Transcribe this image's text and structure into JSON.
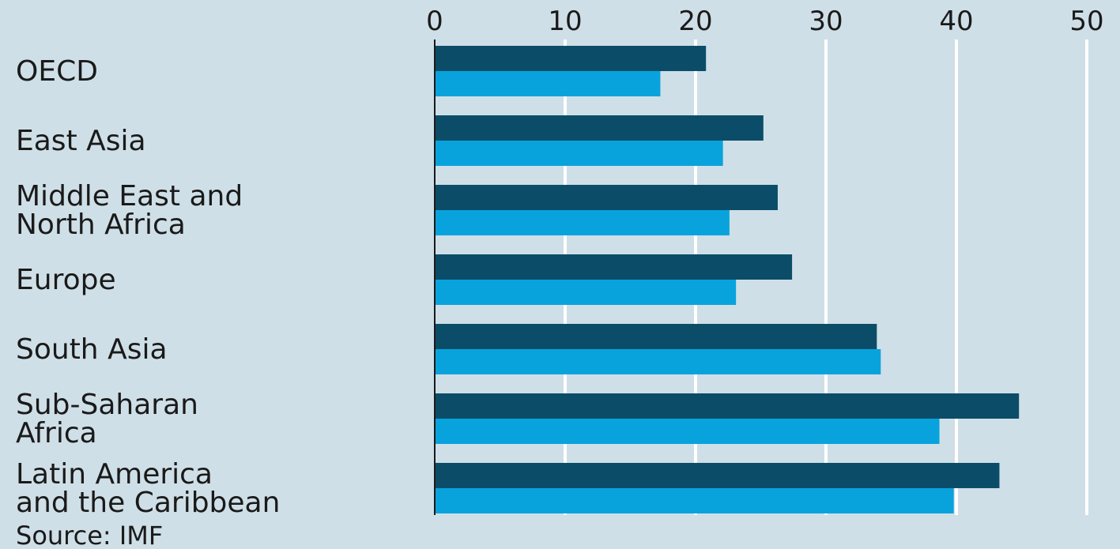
{
  "chart_data": {
    "type": "bar",
    "orientation": "horizontal",
    "categories": [
      "OECD",
      "East Asia",
      "Middle East and North Africa",
      "Europe",
      "South Asia",
      "Sub-Saharan Africa",
      "Latin America and the Caribbean"
    ],
    "category_lines": [
      [
        "OECD"
      ],
      [
        "East Asia"
      ],
      [
        "Middle East and",
        "North Africa"
      ],
      [
        "Europe"
      ],
      [
        "South Asia"
      ],
      [
        "Sub-Saharan",
        "Africa"
      ],
      [
        "Latin America",
        "and the Caribbean"
      ]
    ],
    "series": [
      {
        "values": [
          20.8,
          25.2,
          26.3,
          27.4,
          33.9,
          44.8,
          43.3
        ]
      },
      {
        "values": [
          17.3,
          22.1,
          22.6,
          23.1,
          34.2,
          38.7,
          39.8
        ]
      }
    ],
    "xlim": [
      0,
      50
    ],
    "xticks": [
      "0",
      "10",
      "20",
      "30",
      "40",
      "50"
    ],
    "source": "Source: IMF",
    "grid": true,
    "colors": {
      "background": "#cfdfe7",
      "gridline": "#ffffff",
      "series_1": "#0b4d68",
      "series_2": "#08a3dd",
      "axis": "#1a1a1a",
      "text": "#1a1a1a"
    }
  }
}
